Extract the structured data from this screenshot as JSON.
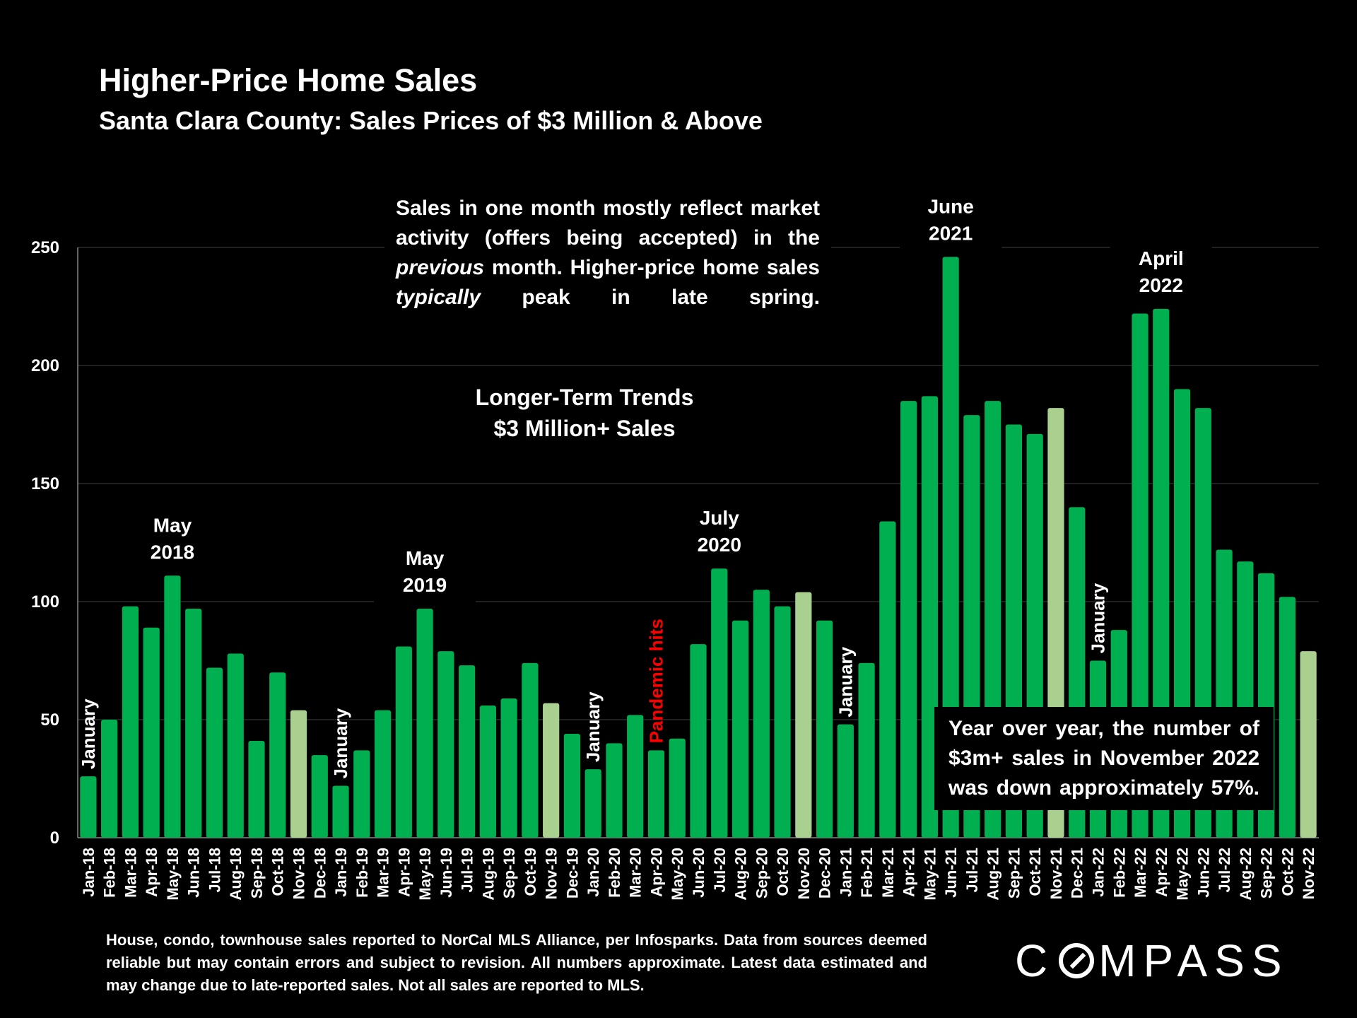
{
  "header": {
    "title": "Higher-Price Home Sales",
    "subtitle": "Santa Clara County: Sales Prices of $3 Million & Above"
  },
  "note": {
    "line1": "Sales in one month mostly reflect market activity (offers being accepted) in the",
    "emph1": "previous",
    "line2": " month. Higher-price home sales ",
    "emph2": "typically",
    "line3": " peak in late spring."
  },
  "center_label": {
    "line1": "Longer-Term Trends",
    "line2": "$3 Million+ Sales"
  },
  "yoy": "Year over year, the number of $3m+ sales in November 2022 was down approximately 57%.",
  "footnote": "House, condo, townhouse sales reported to NorCal MLS Alliance, per Infosparks. Data from sources deemed reliable but may contain errors and subject to revision. All numbers approximate. Latest data estimated and may change due to late-reported sales. Not all sales are reported to MLS.",
  "logo": {
    "pre": "C",
    "post": "MPASS"
  },
  "colors": {
    "bar": "#00b050",
    "highlight": "#a9d08e",
    "background": "#000000",
    "pandemic": "#ff0000"
  },
  "chart_data": {
    "type": "bar",
    "title": "Longer-Term Trends",
    "ylim": [
      0,
      250
    ],
    "yticks": [
      0,
      50,
      100,
      150,
      200,
      250
    ],
    "grid": true,
    "categories": [
      "Jan-18",
      "Feb-18",
      "Mar-18",
      "Apr-18",
      "May-18",
      "Jun-18",
      "Jul-18",
      "Aug-18",
      "Sep-18",
      "Oct-18",
      "Nov-18",
      "Dec-18",
      "Jan-19",
      "Feb-19",
      "Mar-19",
      "Apr-19",
      "May-19",
      "Jun-19",
      "Jul-19",
      "Aug-19",
      "Sep-19",
      "Oct-19",
      "Nov-19",
      "Dec-19",
      "Jan-20",
      "Feb-20",
      "Mar-20",
      "Apr-20",
      "May-20",
      "Jun-20",
      "Jul-20",
      "Aug-20",
      "Sep-20",
      "Oct-20",
      "Nov-20",
      "Dec-20",
      "Jan-21",
      "Feb-21",
      "Mar-21",
      "Apr-21",
      "May-21",
      "Jun-21",
      "Jul-21",
      "Aug-21",
      "Sep-21",
      "Oct-21",
      "Nov-21",
      "Dec-21",
      "Jan-22",
      "Feb-22",
      "Mar-22",
      "Apr-22",
      "May-22",
      "Jun-22",
      "Jul-22",
      "Aug-22",
      "Sep-22",
      "Oct-22",
      "Nov-22"
    ],
    "values": [
      26,
      50,
      98,
      89,
      111,
      97,
      72,
      78,
      41,
      70,
      54,
      35,
      22,
      37,
      54,
      81,
      97,
      79,
      73,
      56,
      59,
      74,
      57,
      44,
      29,
      40,
      52,
      37,
      42,
      82,
      114,
      92,
      105,
      98,
      104,
      92,
      48,
      74,
      134,
      185,
      187,
      246,
      179,
      185,
      175,
      171,
      182,
      140,
      75,
      88,
      222,
      224,
      190,
      182,
      122,
      117,
      112,
      102,
      79
    ],
    "highlighted": [
      "Nov-18",
      "Nov-19",
      "Nov-20",
      "Nov-21",
      "Nov-22"
    ],
    "annotations": [
      {
        "category": "May-18",
        "line1": "May",
        "line2": "2018"
      },
      {
        "category": "May-19",
        "line1": "May",
        "line2": "2019"
      },
      {
        "category": "Jul-20",
        "line1": "July",
        "line2": "2020"
      },
      {
        "category": "Jun-21",
        "line1": "June",
        "line2": "2021"
      },
      {
        "category": "Apr-22",
        "line1": "April",
        "line2": "2022"
      }
    ],
    "vertical_annotations": [
      {
        "category": "Jan-18",
        "text": "January",
        "color": "#ffffff"
      },
      {
        "category": "Jan-19",
        "text": "January",
        "color": "#ffffff"
      },
      {
        "category": "Jan-20",
        "text": "January",
        "color": "#ffffff"
      },
      {
        "category": "Apr-20",
        "text": "Pandemic hits",
        "color": "#ff0000"
      },
      {
        "category": "Jan-21",
        "text": "January",
        "color": "#ffffff"
      },
      {
        "category": "Jan-22",
        "text": "January",
        "color": "#ffffff"
      }
    ]
  }
}
